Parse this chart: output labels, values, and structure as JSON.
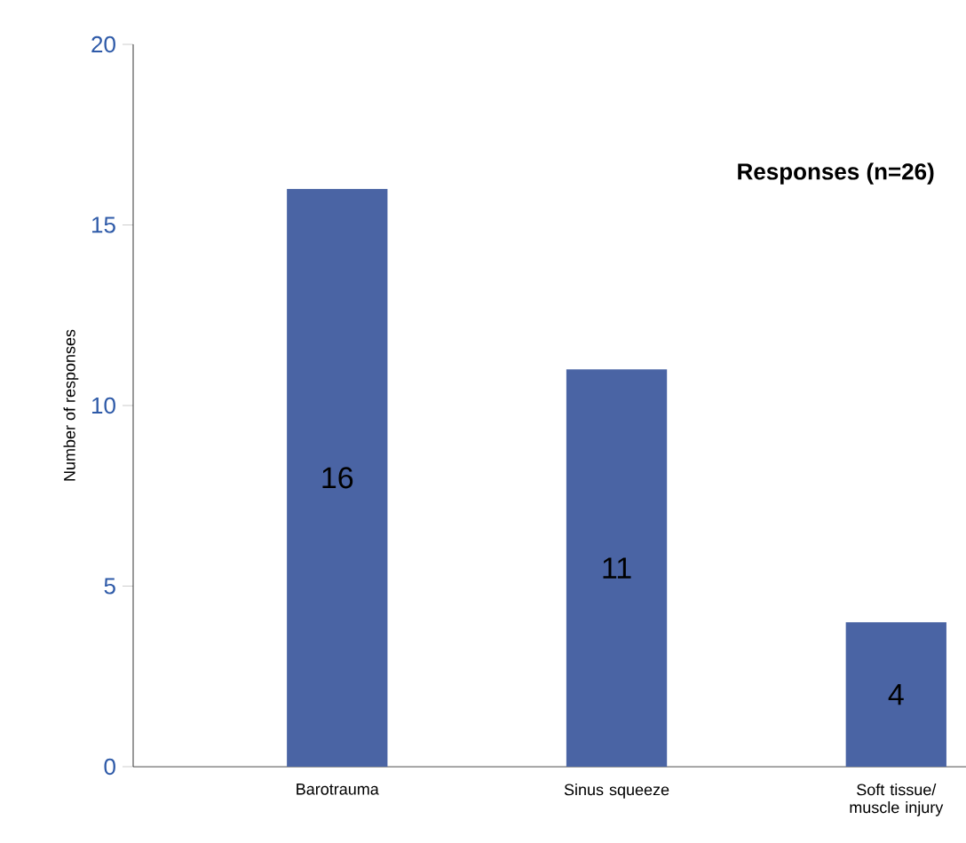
{
  "chart_data": {
    "type": "bar",
    "title": "Responses (n=26)",
    "ylabel": "Number of responses",
    "categories": [
      "Barotrauma",
      "Sinus squeeze",
      "Soft tissue/ muscle injury"
    ],
    "values": [
      16,
      11,
      4
    ],
    "color": "#4a64a4",
    "ylim": [
      0,
      20
    ],
    "yticks": [
      0,
      5,
      10,
      15,
      20
    ],
    "data_labels": true,
    "grid": false
  }
}
